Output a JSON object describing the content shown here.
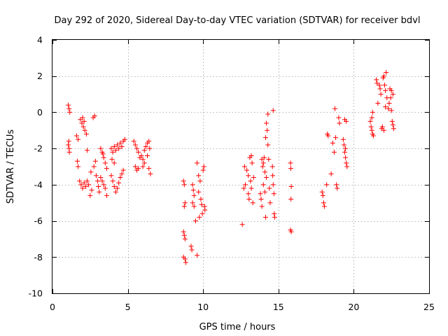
{
  "chart_data": {
    "type": "scatter",
    "title": "Day 292 of 2020, Sidereal Day-to-day VTEC variation (SDTVAR) for receiver bdvl",
    "xlabel": "GPS time / hours",
    "ylabel": "SDTVAR / TECUs",
    "xlim": [
      0,
      25
    ],
    "ylim": [
      -10,
      4
    ],
    "xticks": [
      0,
      5,
      10,
      15,
      20,
      25
    ],
    "yticks": [
      -10,
      -8,
      -6,
      -4,
      -2,
      0,
      2,
      4
    ],
    "xtick_labels": [
      "0",
      "5",
      "10",
      "15",
      "20",
      "25"
    ],
    "ytick_labels": [
      "-10",
      "-8",
      "-6",
      "-4",
      "-2",
      "0",
      "2",
      "4"
    ],
    "grid": true,
    "marker": "+",
    "color": "#ff0000",
    "series": [
      {
        "name": "SDTVAR",
        "points": [
          [
            1.05,
            0.4
          ],
          [
            1.1,
            0.2
          ],
          [
            1.15,
            0.0
          ],
          [
            1.05,
            -1.8
          ],
          [
            1.1,
            -2.0
          ],
          [
            1.12,
            -2.2
          ],
          [
            1.08,
            -1.6
          ],
          [
            1.6,
            -1.3
          ],
          [
            1.7,
            -1.5
          ],
          [
            1.65,
            -2.7
          ],
          [
            1.7,
            -3.0
          ],
          [
            1.8,
            -3.8
          ],
          [
            1.9,
            -4.0
          ],
          [
            2.0,
            -4.2
          ],
          [
            2.1,
            -3.9
          ],
          [
            2.2,
            -4.1
          ],
          [
            2.3,
            -3.8
          ],
          [
            2.4,
            -4.0
          ],
          [
            1.85,
            -0.4
          ],
          [
            1.95,
            -0.6
          ],
          [
            2.05,
            -0.8
          ],
          [
            2.15,
            -1.0
          ],
          [
            2.25,
            -1.2
          ],
          [
            2.0,
            -0.3
          ],
          [
            2.1,
            -0.5
          ],
          [
            2.3,
            -2.1
          ],
          [
            2.5,
            -4.6
          ],
          [
            2.6,
            -4.3
          ],
          [
            2.55,
            -3.3
          ],
          [
            2.7,
            -0.3
          ],
          [
            2.8,
            -0.2
          ],
          [
            2.75,
            -3.0
          ],
          [
            2.85,
            -2.7
          ],
          [
            2.9,
            -3.5
          ],
          [
            3.0,
            -3.8
          ],
          [
            3.05,
            -4.1
          ],
          [
            3.1,
            -4.4
          ],
          [
            3.2,
            -3.6
          ],
          [
            3.3,
            -3.8
          ],
          [
            3.4,
            -4.0
          ],
          [
            3.5,
            -4.2
          ],
          [
            3.6,
            -4.6
          ],
          [
            3.3,
            -2.2
          ],
          [
            3.4,
            -2.5
          ],
          [
            3.5,
            -2.8
          ],
          [
            3.6,
            -3.1
          ],
          [
            3.2,
            -2.0
          ],
          [
            3.35,
            -2.3
          ],
          [
            3.9,
            -2.0
          ],
          [
            4.0,
            -2.2
          ],
          [
            4.1,
            -1.9
          ],
          [
            4.2,
            -2.1
          ],
          [
            4.3,
            -1.8
          ],
          [
            4.4,
            -2.0
          ],
          [
            4.5,
            -1.7
          ],
          [
            4.6,
            -1.9
          ],
          [
            4.7,
            -1.6
          ],
          [
            4.8,
            -1.5
          ],
          [
            3.95,
            -2.6
          ],
          [
            4.1,
            -2.8
          ],
          [
            3.9,
            -3.5
          ],
          [
            4.0,
            -3.8
          ],
          [
            4.1,
            -4.1
          ],
          [
            4.2,
            -4.4
          ],
          [
            4.3,
            -4.2
          ],
          [
            4.4,
            -3.9
          ],
          [
            4.5,
            -3.6
          ],
          [
            4.6,
            -3.4
          ],
          [
            4.7,
            -3.2
          ],
          [
            5.4,
            -1.6
          ],
          [
            5.5,
            -1.8
          ],
          [
            5.6,
            -2.0
          ],
          [
            5.7,
            -2.2
          ],
          [
            5.8,
            -2.5
          ],
          [
            5.5,
            -3.0
          ],
          [
            5.6,
            -3.2
          ],
          [
            5.7,
            -3.1
          ],
          [
            5.9,
            -2.4
          ],
          [
            6.0,
            -2.6
          ],
          [
            6.1,
            -2.1
          ],
          [
            6.2,
            -1.9
          ],
          [
            6.3,
            -1.7
          ],
          [
            6.4,
            -1.6
          ],
          [
            6.0,
            -3.0
          ],
          [
            6.1,
            -2.8
          ],
          [
            6.3,
            -2.4
          ],
          [
            6.4,
            -3.1
          ],
          [
            6.5,
            -3.4
          ],
          [
            6.45,
            -2.0
          ],
          [
            8.7,
            -3.8
          ],
          [
            8.75,
            -4.0
          ],
          [
            8.8,
            -5.0
          ],
          [
            8.75,
            -5.2
          ],
          [
            8.7,
            -6.6
          ],
          [
            8.75,
            -6.8
          ],
          [
            8.8,
            -7.0
          ],
          [
            8.7,
            -8.0
          ],
          [
            8.8,
            -8.1
          ],
          [
            8.85,
            -8.3
          ],
          [
            9.2,
            -7.4
          ],
          [
            9.25,
            -7.6
          ],
          [
            9.3,
            -4.0
          ],
          [
            9.35,
            -4.3
          ],
          [
            9.4,
            -4.6
          ],
          [
            9.3,
            -5.0
          ],
          [
            9.4,
            -5.2
          ],
          [
            9.5,
            -6.0
          ],
          [
            9.6,
            -7.9
          ],
          [
            9.7,
            -4.4
          ],
          [
            9.75,
            -5.8
          ],
          [
            9.8,
            -3.8
          ],
          [
            9.85,
            -4.8
          ],
          [
            9.9,
            -5.1
          ],
          [
            9.95,
            -5.6
          ],
          [
            10.0,
            -3.2
          ],
          [
            10.05,
            -3.0
          ],
          [
            10.1,
            -5.2
          ],
          [
            10.12,
            -5.4
          ],
          [
            9.6,
            -2.8
          ],
          [
            9.7,
            -3.5
          ],
          [
            12.6,
            -6.2
          ],
          [
            12.7,
            -4.2
          ],
          [
            12.75,
            -3.0
          ],
          [
            12.8,
            -4.0
          ],
          [
            12.9,
            -3.2
          ],
          [
            13.0,
            -3.5
          ],
          [
            13.0,
            -4.5
          ],
          [
            13.05,
            -4.8
          ],
          [
            13.1,
            -2.5
          ],
          [
            13.15,
            -3.8
          ],
          [
            13.2,
            -4.2
          ],
          [
            13.25,
            -2.8
          ],
          [
            13.3,
            -5.0
          ],
          [
            13.35,
            -3.6
          ],
          [
            13.2,
            -2.4
          ],
          [
            13.8,
            -4.5
          ],
          [
            13.85,
            -4.8
          ],
          [
            13.9,
            -5.2
          ],
          [
            13.95,
            -3.0
          ],
          [
            14.0,
            -4.0
          ],
          [
            14.05,
            -2.5
          ],
          [
            14.1,
            -4.4
          ],
          [
            14.15,
            -5.8
          ],
          [
            14.2,
            -0.6
          ],
          [
            14.25,
            -1.0
          ],
          [
            14.3,
            -1.8
          ],
          [
            14.35,
            -2.6
          ],
          [
            14.0,
            -2.8
          ],
          [
            14.2,
            -3.6
          ],
          [
            14.4,
            -4.2
          ],
          [
            14.1,
            -3.3
          ],
          [
            13.9,
            -2.6
          ],
          [
            14.45,
            -5.0
          ],
          [
            14.3,
            -0.1
          ],
          [
            14.15,
            -1.4
          ],
          [
            14.6,
            -3.0
          ],
          [
            14.62,
            -3.5
          ],
          [
            14.65,
            -4.0
          ],
          [
            14.7,
            -4.5
          ],
          [
            14.72,
            -5.6
          ],
          [
            14.75,
            -5.8
          ],
          [
            14.65,
            0.1
          ],
          [
            15.8,
            -2.8
          ],
          [
            15.82,
            -3.1
          ],
          [
            15.85,
            -4.1
          ],
          [
            15.83,
            -4.8
          ],
          [
            15.8,
            -6.5
          ],
          [
            15.85,
            -6.6
          ],
          [
            17.9,
            -4.4
          ],
          [
            17.95,
            -4.6
          ],
          [
            18.0,
            -5.0
          ],
          [
            18.05,
            -5.2
          ],
          [
            18.2,
            -4.0
          ],
          [
            18.25,
            -1.2
          ],
          [
            18.3,
            -1.3
          ],
          [
            18.5,
            -3.4
          ],
          [
            18.6,
            -1.7
          ],
          [
            18.7,
            -2.2
          ],
          [
            18.75,
            0.2
          ],
          [
            18.8,
            -1.4
          ],
          [
            18.85,
            -4.0
          ],
          [
            18.9,
            -4.2
          ],
          [
            19.0,
            -0.3
          ],
          [
            19.05,
            -0.6
          ],
          [
            19.3,
            -1.5
          ],
          [
            19.35,
            -1.8
          ],
          [
            19.4,
            -2.2
          ],
          [
            19.45,
            -2.5
          ],
          [
            19.5,
            -2.8
          ],
          [
            19.55,
            -3.0
          ],
          [
            19.4,
            -0.4
          ],
          [
            19.5,
            -0.5
          ],
          [
            19.45,
            -2.0
          ],
          [
            21.1,
            -0.5
          ],
          [
            21.15,
            -0.8
          ],
          [
            21.2,
            -1.0
          ],
          [
            21.25,
            -1.2
          ],
          [
            21.3,
            -1.3
          ],
          [
            21.2,
            -0.3
          ],
          [
            21.25,
            0.0
          ],
          [
            21.5,
            1.8
          ],
          [
            21.55,
            1.6
          ],
          [
            21.6,
            0.5
          ],
          [
            21.7,
            1.5
          ],
          [
            21.75,
            1.3
          ],
          [
            21.8,
            1.0
          ],
          [
            21.85,
            -0.9
          ],
          [
            21.9,
            -0.8
          ],
          [
            21.95,
            1.9
          ],
          [
            22.0,
            2.0
          ],
          [
            22.05,
            1.5
          ],
          [
            22.1,
            1.2
          ],
          [
            22.15,
            2.2
          ],
          [
            22.0,
            -1.0
          ],
          [
            22.2,
            0.8
          ],
          [
            22.1,
            0.3
          ],
          [
            22.3,
            0.2
          ],
          [
            22.35,
            0.5
          ],
          [
            22.4,
            1.3
          ],
          [
            22.45,
            0.8
          ],
          [
            22.5,
            1.2
          ],
          [
            22.55,
            -0.5
          ],
          [
            22.6,
            -0.7
          ],
          [
            22.65,
            -0.9
          ],
          [
            22.6,
            1.0
          ],
          [
            22.5,
            0.1
          ]
        ]
      }
    ]
  }
}
